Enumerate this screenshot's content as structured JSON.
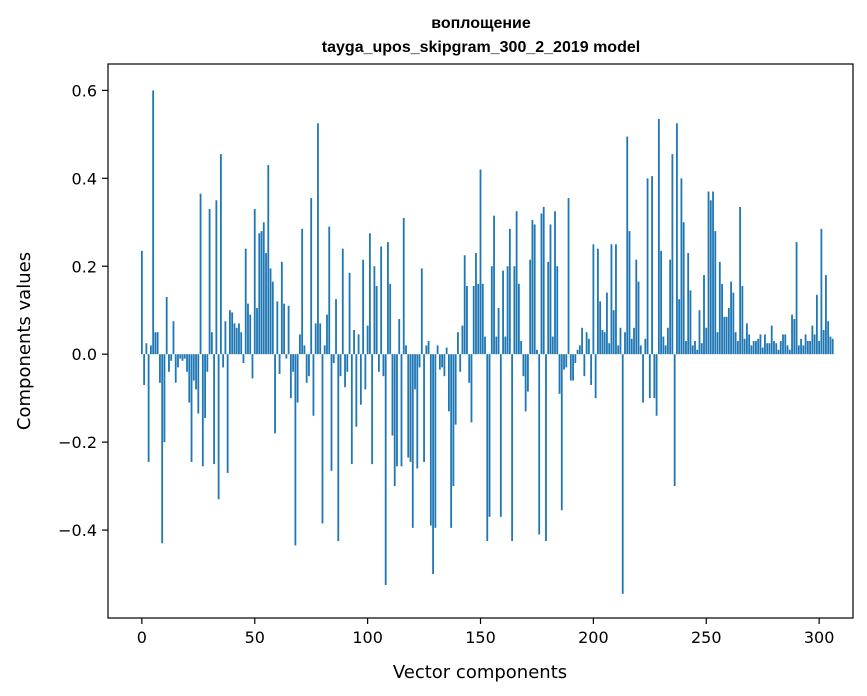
{
  "chart_data": {
    "type": "bar",
    "title_lines": [
      "воплощение",
      "tayga_upos_skipgram_300_2_2019 model"
    ],
    "xlabel": "Vector components",
    "ylabel": "Components values",
    "xlim": [
      -15,
      315
    ],
    "ylim": [
      -0.6,
      0.66
    ],
    "xticks": [
      0,
      50,
      100,
      150,
      200,
      250,
      300
    ],
    "yticks": [
      -0.4,
      -0.2,
      0.0,
      0.2,
      0.4,
      0.6
    ],
    "xtick_labels": [
      "0",
      "50",
      "100",
      "150",
      "200",
      "250",
      "300"
    ],
    "ytick_labels": [
      "−0.4",
      "−0.2",
      "0.0",
      "0.2",
      "0.4",
      "0.6"
    ],
    "bar_color": "#1f77b4",
    "grid": false,
    "x_start": 0,
    "values": [
      0.235,
      -0.07,
      0.025,
      -0.245,
      0.02,
      0.6,
      0.05,
      0.05,
      -0.065,
      -0.43,
      -0.2,
      0.13,
      -0.04,
      -0.015,
      0.075,
      -0.065,
      -0.03,
      -0.01,
      -0.015,
      -0.01,
      -0.04,
      -0.11,
      -0.245,
      -0.06,
      -0.08,
      -0.135,
      0.365,
      -0.255,
      -0.145,
      -0.04,
      0.33,
      0.05,
      -0.25,
      0.35,
      -0.33,
      0.455,
      -0.03,
      0.075,
      -0.27,
      0.1,
      0.095,
      0.07,
      0.06,
      0.07,
      0.05,
      -0.02,
      0.24,
      0.115,
      0.09,
      -0.055,
      0.33,
      0.105,
      0.275,
      0.28,
      0.3,
      0.23,
      0.43,
      0.195,
      0.165,
      -0.18,
      0.12,
      -0.045,
      0.21,
      0.115,
      -0.01,
      0.11,
      -0.1,
      -0.04,
      -0.435,
      -0.11,
      0.045,
      0.285,
      0.02,
      -0.065,
      -0.05,
      0.355,
      -0.14,
      0.07,
      0.525,
      0.07,
      -0.385,
      0.02,
      0.09,
      0.29,
      -0.265,
      -0.02,
      0.125,
      -0.425,
      -0.05,
      0.24,
      -0.075,
      -0.04,
      0.185,
      -0.25,
      0.055,
      -0.165,
      0.045,
      -0.115,
      0.215,
      -0.08,
      0.065,
      0.275,
      -0.25,
      0.2,
      0.155,
      -0.04,
      0.245,
      -0.05,
      -0.525,
      0.255,
      0.16,
      -0.185,
      -0.3,
      -0.255,
      0.08,
      -0.255,
      0.31,
      0.02,
      -0.235,
      -0.245,
      -0.395,
      -0.08,
      -0.26,
      -0.03,
      0.195,
      -0.245,
      0.02,
      0.03,
      -0.39,
      -0.5,
      -0.395,
      0.02,
      -0.035,
      -0.03,
      -0.05,
      0.015,
      -0.13,
      -0.395,
      -0.3,
      -0.16,
      0.05,
      -0.04,
      0.065,
      0.225,
      0.155,
      -0.065,
      -0.155,
      0.155,
      0.23,
      0.16,
      0.42,
      0.16,
      0.04,
      -0.425,
      -0.37,
      0.2,
      0.315,
      0.04,
      0.105,
      -0.37,
      0.19,
      0.04,
      0.2,
      0.285,
      -0.425,
      0.2,
      0.325,
      0.16,
      0.03,
      -0.05,
      -0.13,
      -0.085,
      0.215,
      0.305,
      0.295,
      0.01,
      -0.41,
      0.32,
      0.335,
      -0.425,
      0.21,
      0.295,
      0.04,
      0.325,
      0.2,
      -0.09,
      -0.355,
      -0.035,
      -0.03,
      0.355,
      -0.06,
      -0.06,
      -0.02,
      0.01,
      0.02,
      0.06,
      -0.05,
      0.05,
      0.035,
      -0.07,
      0.25,
      -0.1,
      0.24,
      0.12,
      0.055,
      0.05,
      0.14,
      0.025,
      0.25,
      0.1,
      0.25,
      0.02,
      0.06,
      -0.545,
      0.05,
      0.495,
      0.28,
      0.035,
      0.06,
      0.215,
      0.165,
      0.02,
      -0.11,
      0.035,
      0.4,
      -0.1,
      0.405,
      -0.1,
      -0.14,
      0.535,
      0.235,
      0.04,
      0.02,
      0.06,
      0.215,
      0.455,
      -0.3,
      0.525,
      0.125,
      0.4,
      0.3,
      0.03,
      0.23,
      0.145,
      0.02,
      0.03,
      0.01,
      0.1,
      0.025,
      0.18,
      0.06,
      0.37,
      0.35,
      0.37,
      0.28,
      0.05,
      0.21,
      0.16,
      0.085,
      0.085,
      0.105,
      0.165,
      0.14,
      0.05,
      0.03,
      0.335,
      0.155,
      0.035,
      0.07,
      0.045,
      0.02,
      0.03,
      0.03,
      0.035,
      0.045,
      0.015,
      0.045,
      0.025,
      0.025,
      0.065,
      0.03,
      0.025,
      0.01,
      0.03,
      0.045,
      0.045,
      0.02,
      0.01,
      0.09,
      0.08,
      0.255,
      0.02,
      0.035,
      0.02,
      0.045,
      0.03,
      0.03,
      0.065,
      0.045,
      0.135,
      0.03,
      0.285,
      0.055,
      0.18,
      0.075,
      0.04,
      0.035
    ]
  }
}
